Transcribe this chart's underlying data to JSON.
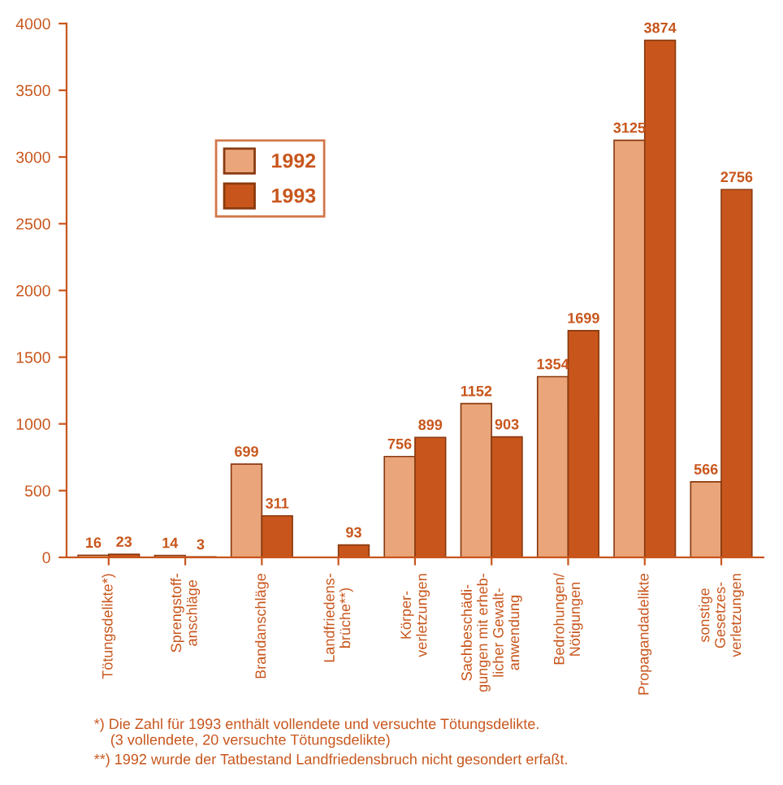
{
  "chart_data": {
    "type": "bar",
    "categories": [
      "Tötungsdelikte*)",
      "Sprengstoff-\nanschläge",
      "Brandanschläge",
      "Landfriedens-\nbrüche**)",
      "Körper-\nverletzungen",
      "Sachbeschädi-\ngungen mit erheb-\nlicher Gewalt-\nanwendung",
      "Bedrohungen/\nNötigungen",
      "Propagandadelikte",
      "sonstige\nGesetzes-\nverletzungen"
    ],
    "series": [
      {
        "name": "1992",
        "color": "#eaa67a",
        "values": [
          16,
          14,
          699,
          null,
          756,
          1152,
          1354,
          3125,
          566
        ]
      },
      {
        "name": "1993",
        "color": "#c8561c",
        "values": [
          23,
          3,
          311,
          93,
          899,
          903,
          1699,
          3874,
          2756
        ]
      }
    ],
    "ylim": [
      0,
      4000
    ],
    "yticks": [
      0,
      500,
      1000,
      1500,
      2000,
      2500,
      3000,
      3500,
      4000
    ],
    "grid": false,
    "legend": "top left",
    "data_labels": true,
    "annotations": [
      "*) Die Zahl für 1993 enthält vollendete und versuchte Tötungsdelikte.\n    (3 vollendete, 20 versuchte Tötungsdelikte)",
      "**) 1992 wurde der Tatbestand Landfriedensbruch nicht gesondert erfaßt."
    ]
  }
}
